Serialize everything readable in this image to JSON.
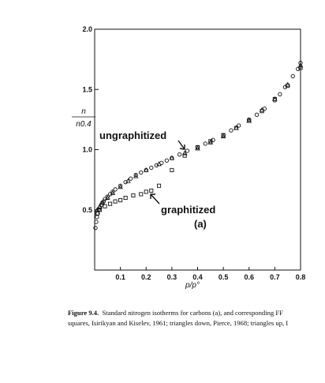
{
  "chart_data": {
    "type": "scatter",
    "panel_label": "(a)",
    "xlabel": "p/p°",
    "ylabel_num": "n",
    "ylabel_den": "n0.4",
    "xlim": [
      0,
      0.8
    ],
    "ylim": [
      0,
      2.0
    ],
    "x_ticks": [
      "0.1",
      "0.2",
      "0.3",
      "0.4",
      "0.5",
      "0.6",
      "0.7",
      "0.8"
    ],
    "x_tick_values": [
      0.1,
      0.2,
      0.3,
      0.4,
      0.5,
      0.6,
      0.7,
      0.8
    ],
    "y_ticks": [
      "0.5",
      "1.0",
      "1.5",
      "2.0"
    ],
    "y_tick_values": [
      0.5,
      1.0,
      1.5,
      2.0
    ],
    "grid": false,
    "annotations": [
      "ungraphitized",
      "graphitized"
    ],
    "series": [
      {
        "marker": "circle",
        "x": [
          0.003,
          0.006,
          0.009,
          0.012,
          0.016,
          0.02,
          0.025,
          0.03,
          0.035,
          0.04,
          0.05,
          0.06,
          0.07,
          0.08,
          0.1,
          0.12,
          0.14,
          0.16,
          0.18,
          0.2,
          0.22,
          0.24,
          0.26,
          0.28,
          0.3,
          0.33,
          0.36,
          0.4,
          0.43,
          0.46,
          0.5,
          0.53,
          0.56,
          0.6,
          0.63,
          0.66,
          0.7,
          0.72,
          0.74,
          0.77,
          0.79,
          0.8
        ],
        "y": [
          0.35,
          0.4,
          0.44,
          0.47,
          0.5,
          0.52,
          0.54,
          0.56,
          0.57,
          0.59,
          0.61,
          0.63,
          0.65,
          0.67,
          0.7,
          0.73,
          0.76,
          0.79,
          0.81,
          0.83,
          0.85,
          0.87,
          0.89,
          0.91,
          0.93,
          0.96,
          0.99,
          1.02,
          1.05,
          1.08,
          1.12,
          1.16,
          1.2,
          1.25,
          1.29,
          1.34,
          1.41,
          1.46,
          1.52,
          1.61,
          1.67,
          1.72
        ]
      },
      {
        "marker": "triangle-up",
        "x": [
          0.01,
          0.02,
          0.03,
          0.05,
          0.07,
          0.1,
          0.13,
          0.16,
          0.2,
          0.25,
          0.3,
          0.35,
          0.4,
          0.45,
          0.5,
          0.55,
          0.6,
          0.65,
          0.7,
          0.75,
          0.8
        ],
        "y": [
          0.5,
          0.53,
          0.56,
          0.6,
          0.64,
          0.69,
          0.74,
          0.78,
          0.83,
          0.88,
          0.93,
          0.97,
          1.01,
          1.06,
          1.11,
          1.18,
          1.24,
          1.33,
          1.42,
          1.54,
          1.7
        ]
      },
      {
        "marker": "square",
        "x": [
          0.01,
          0.02,
          0.04,
          0.06,
          0.08,
          0.1,
          0.12,
          0.15,
          0.18,
          0.2,
          0.22,
          0.25,
          0.3,
          0.35,
          0.4,
          0.45,
          0.5,
          0.55,
          0.6,
          0.65,
          0.7,
          0.75,
          0.8
        ],
        "y": [
          0.47,
          0.5,
          0.53,
          0.55,
          0.57,
          0.58,
          0.6,
          0.62,
          0.63,
          0.65,
          0.66,
          0.7,
          0.83,
          0.95,
          1.02,
          1.07,
          1.12,
          1.18,
          1.24,
          1.32,
          1.42,
          1.53,
          1.68
        ]
      }
    ]
  },
  "caption": {
    "label": "Figure 9.4.",
    "line1_text": "Standard nitrogen isotherms for carbons (a), and corresponding FF",
    "line2_text": "squares, Isirikyan and Kiselev, 1961; triangles down, Pierce, 1968; triangles up, I"
  }
}
